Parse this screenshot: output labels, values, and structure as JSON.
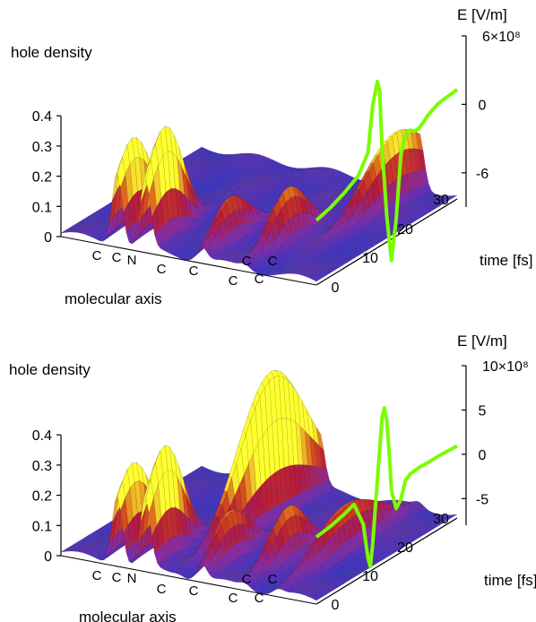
{
  "chart_data": [
    {
      "type": "surface",
      "zlabel": "hole density",
      "zticks": [
        "0",
        "0.1",
        "0.2",
        "0.3",
        "0.4"
      ],
      "zlim": [
        0,
        0.4
      ],
      "xlabel": "molecular axis",
      "atoms": [
        "C",
        "C",
        "N",
        "C",
        "C",
        "C",
        "C",
        "C",
        "C"
      ],
      "ylabel": "time [fs]",
      "yticks": [
        "0",
        "10",
        "20",
        "30"
      ],
      "ylim": [
        0,
        30
      ],
      "elabel": "E [V/m]",
      "eticks": [
        "6×10⁸",
        "0",
        "-6"
      ],
      "etick_values": [
        6,
        0,
        -6
      ],
      "elim": [
        -9,
        6
      ],
      "peaks": [
        {
          "atom_position": 0.22,
          "time": 3,
          "height": 0.33
        },
        {
          "atom_position": 0.33,
          "time": 4,
          "height": 0.37
        },
        {
          "atom_position": 0.55,
          "time": 6,
          "height": 0.15
        },
        {
          "atom_position": 0.72,
          "time": 9,
          "height": 0.18
        },
        {
          "atom_position": 0.85,
          "time": 25,
          "height": 0.24
        }
      ],
      "field_series": {
        "name": "",
        "color": "#7cfc00",
        "time": [
          0,
          3,
          6,
          9,
          11,
          12,
          13,
          13.5,
          14,
          15,
          16,
          17,
          18,
          19,
          20,
          21,
          22,
          24,
          26,
          28,
          30
        ],
        "E": [
          -7.3,
          -6.5,
          -5.5,
          -4.3,
          -2.5,
          1.5,
          3.5,
          2.6,
          -2.5,
          -8.5,
          -12.5,
          -9.0,
          -3.5,
          -1.7,
          -1.5,
          -1.7,
          -1.5,
          -0.5,
          0.2,
          0.6,
          1.0
        ]
      },
      "colormap": [
        "#3a32c8",
        "#8a2ba0",
        "#b51a3c",
        "#d8501a",
        "#ffff30"
      ]
    },
    {
      "type": "surface",
      "zlabel": "hole density",
      "zticks": [
        "0",
        "0.1",
        "0.2",
        "0.3",
        "0.4"
      ],
      "zlim": [
        0,
        0.4
      ],
      "xlabel": "molecular axis",
      "atoms": [
        "C",
        "C",
        "N",
        "C",
        "C",
        "C",
        "C",
        "C",
        "C"
      ],
      "ylabel": "time [fs]",
      "yticks": [
        "0",
        "10",
        "20",
        "30"
      ],
      "ylim": [
        0,
        30
      ],
      "elabel": "E [V/m]",
      "eticks": [
        "10×10⁸",
        "5",
        "0",
        "-5"
      ],
      "etick_values": [
        10,
        5,
        0,
        -5
      ],
      "elim": [
        -8,
        10
      ],
      "peaks": [
        {
          "atom_position": 0.22,
          "time": 3,
          "height": 0.31
        },
        {
          "atom_position": 0.33,
          "time": 4,
          "height": 0.37
        },
        {
          "atom_position": 0.46,
          "time": 20,
          "height": 0.5
        },
        {
          "atom_position": 0.55,
          "time": 6,
          "height": 0.17
        },
        {
          "atom_position": 0.72,
          "time": 9,
          "height": 0.18
        },
        {
          "atom_position": 0.85,
          "time": 15,
          "height": 0.16
        }
      ],
      "field_series": {
        "name": "",
        "color": "#7cfc00",
        "time": [
          0,
          3,
          6,
          8,
          10,
          11,
          11.5,
          12,
          13,
          14,
          14.5,
          15,
          15.5,
          16,
          17,
          18,
          19,
          20,
          22,
          24,
          26,
          28,
          30
        ],
        "E": [
          -5.6,
          -4.8,
          -3.8,
          -3.0,
          -5.5,
          -9.5,
          -10.5,
          -8.0,
          -1.0,
          6.0,
          7.0,
          5.5,
          2.0,
          -2.5,
          -4.7,
          -3.8,
          -1.8,
          -1.2,
          -0.7,
          -0.4,
          0.0,
          0.3,
          0.6
        ]
      },
      "colormap": [
        "#3a32c8",
        "#8a2ba0",
        "#b51a3c",
        "#d8501a",
        "#ffff30"
      ]
    }
  ]
}
